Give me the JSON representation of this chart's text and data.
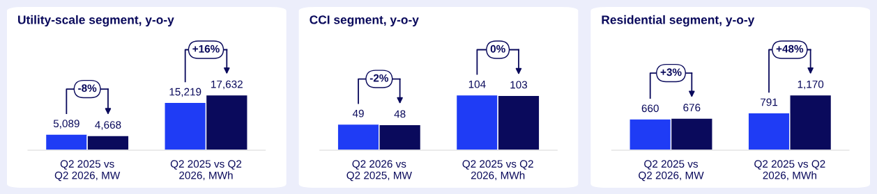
{
  "chart_data": [
    {
      "type": "bar",
      "title": "Utility-scale segment, y-o-y",
      "categories": [
        "Q2 2025 vs\nQ2 2026, MW",
        "Q2 2025 vs Q2\n2026, MWh"
      ],
      "series": [
        {
          "color": "#1f3cf5",
          "values": [
            5089,
            15219
          ],
          "value_labels": [
            "5,089",
            "15,219"
          ]
        },
        {
          "color": "#0a0a5c",
          "values": [
            4668,
            17632
          ],
          "value_labels": [
            "4,668",
            "17,632"
          ]
        }
      ],
      "annotations": [
        "-8%",
        "+16%"
      ]
    },
    {
      "type": "bar",
      "title": "CCI segment, y-o-y",
      "categories": [
        "Q2 2026 vs\nQ2 2025, MW",
        "Q2 2025 vs Q2\n2026, MWh"
      ],
      "series": [
        {
          "color": "#1f3cf5",
          "values": [
            49,
            104
          ],
          "value_labels": [
            "49",
            "104"
          ]
        },
        {
          "color": "#0a0a5c",
          "values": [
            48,
            103
          ],
          "value_labels": [
            "48",
            "103"
          ]
        }
      ],
      "annotations": [
        "-2%",
        "0%"
      ]
    },
    {
      "type": "bar",
      "title": "Residential segment, y-o-y",
      "categories": [
        "Q2 2025 vs\nQ2 2026, MW",
        "Q2 2025 vs Q2\n2026, MWh"
      ],
      "series": [
        {
          "color": "#1f3cf5",
          "values": [
            660,
            791
          ],
          "value_labels": [
            "660",
            "791"
          ]
        },
        {
          "color": "#0a0a5c",
          "values": [
            676,
            1170
          ],
          "value_labels": [
            "676",
            "1,170"
          ]
        }
      ],
      "annotations": [
        "+3%",
        "+48%"
      ]
    }
  ]
}
